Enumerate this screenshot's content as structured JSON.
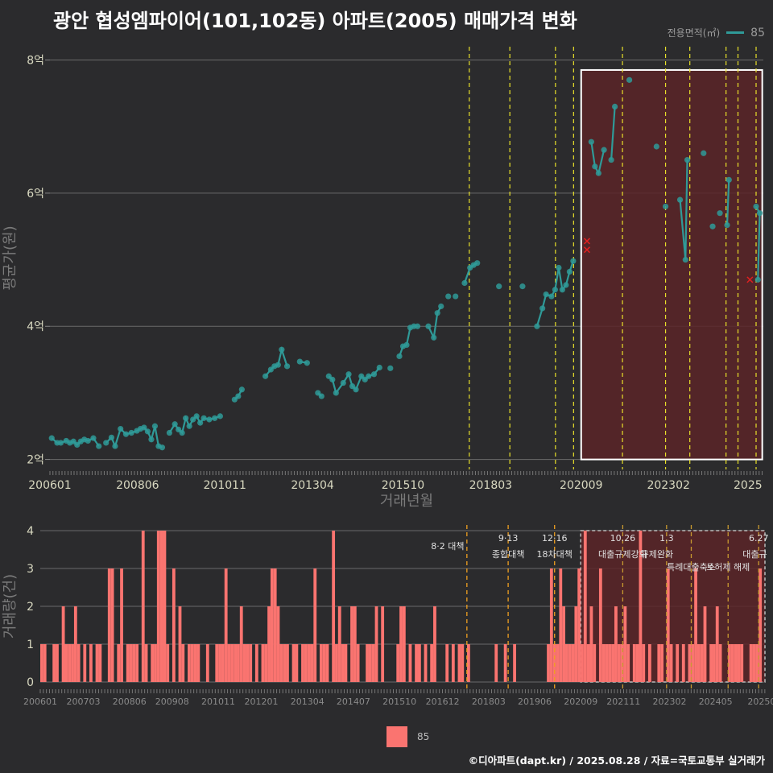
{
  "title": "광안 협성엠파이어(101,102동) 아파트(2005) 매매가격 변화",
  "legend_top": {
    "title": "전용면적(㎡)",
    "label": "85"
  },
  "legend_bottom": {
    "label": "85"
  },
  "footer": "©디아파트(dapt.kr) / 2025.08.28 / 자료=국토교통부 실거래가",
  "colors": {
    "background": "#2b2b2d",
    "price_line": "#2f9a98",
    "volume_bar": "#fa7470",
    "policy_line_yellow": "#e8e02a",
    "policy_line_orange": "#f0a020",
    "highlight_fill": "#5a2528",
    "cancelled_marker": "#e02020"
  },
  "chart_data": [
    {
      "type": "line",
      "title": "광안 협성엠파이어(101,102동) 아파트(2005) 매매가격 변화",
      "xlabel": "거래년월",
      "ylabel": "평균가(원)",
      "x_ticks": [
        "200601",
        "200806",
        "201011",
        "201304",
        "201510",
        "201803",
        "202009",
        "202302",
        "2025"
      ],
      "y_ticks": [
        "2억",
        "4억",
        "6억",
        "8억"
      ],
      "xlim": [
        2006.0,
        2025.7
      ],
      "ylim": [
        1.85,
        8.2
      ],
      "y_unit": "억",
      "grid": true,
      "legend": "top-right",
      "highlight_range": [
        2020.67,
        2025.67
      ],
      "policy_lines": [
        2017.58,
        2018.7,
        2019.96,
        2020.46,
        2021.81,
        2023.0,
        2023.67,
        2024.67,
        2025.0,
        2025.5
      ],
      "cancelled": [
        [
          2020.83,
          5.28
        ],
        [
          2020.83,
          5.15
        ],
        [
          2025.33,
          4.7
        ]
      ],
      "series": [
        {
          "name": "85",
          "points": [
            [
              2006.05,
              2.32
            ],
            [
              2006.2,
              2.25
            ],
            [
              2006.3,
              2.25
            ],
            [
              2006.45,
              2.28
            ],
            [
              2006.55,
              2.25
            ],
            [
              2006.65,
              2.27
            ],
            [
              2006.75,
              2.22
            ],
            [
              2006.85,
              2.27
            ],
            [
              2006.95,
              2.3
            ],
            [
              2007.05,
              2.28
            ],
            [
              2007.2,
              2.32
            ],
            [
              2007.35,
              2.2
            ],
            [
              2007.55,
              2.25
            ],
            [
              2007.7,
              2.33
            ],
            [
              2007.8,
              2.2
            ],
            [
              2007.95,
              2.46
            ],
            [
              2008.1,
              2.38
            ],
            [
              2008.25,
              2.4
            ],
            [
              2008.4,
              2.43
            ],
            [
              2008.5,
              2.46
            ],
            [
              2008.6,
              2.48
            ],
            [
              2008.7,
              2.42
            ],
            [
              2008.8,
              2.3
            ],
            [
              2008.9,
              2.5
            ],
            [
              2009.0,
              2.2
            ],
            [
              2009.1,
              2.18
            ],
            [
              2009.3,
              2.4
            ],
            [
              2009.45,
              2.53
            ],
            [
              2009.55,
              2.45
            ],
            [
              2009.65,
              2.4
            ],
            [
              2009.75,
              2.62
            ],
            [
              2009.85,
              2.5
            ],
            [
              2009.95,
              2.6
            ],
            [
              2010.05,
              2.65
            ],
            [
              2010.15,
              2.55
            ],
            [
              2010.25,
              2.62
            ],
            [
              2010.4,
              2.6
            ],
            [
              2010.55,
              2.62
            ],
            [
              2010.7,
              2.65
            ],
            [
              2011.1,
              2.9
            ],
            [
              2011.2,
              2.95
            ],
            [
              2011.3,
              3.05
            ],
            [
              2011.95,
              3.25
            ],
            [
              2012.1,
              3.35
            ],
            [
              2012.2,
              3.4
            ],
            [
              2012.3,
              3.42
            ],
            [
              2012.4,
              3.65
            ],
            [
              2012.55,
              3.4
            ],
            [
              2012.9,
              3.47
            ],
            [
              2013.1,
              3.45
            ],
            [
              2013.4,
              3.0
            ],
            [
              2013.5,
              2.95
            ],
            [
              2013.7,
              3.25
            ],
            [
              2013.8,
              3.2
            ],
            [
              2013.9,
              3.0
            ],
            [
              2014.1,
              3.15
            ],
            [
              2014.25,
              3.28
            ],
            [
              2014.35,
              3.1
            ],
            [
              2014.45,
              3.05
            ],
            [
              2014.6,
              3.25
            ],
            [
              2014.7,
              3.2
            ],
            [
              2014.8,
              3.25
            ],
            [
              2014.95,
              3.28
            ],
            [
              2015.1,
              3.38
            ],
            [
              2015.4,
              3.37
            ],
            [
              2015.65,
              3.55
            ],
            [
              2015.75,
              3.7
            ],
            [
              2015.85,
              3.72
            ],
            [
              2015.95,
              3.98
            ],
            [
              2016.05,
              4.0
            ],
            [
              2016.15,
              4.0
            ],
            [
              2016.45,
              4.0
            ],
            [
              2016.6,
              3.83
            ],
            [
              2016.7,
              4.2
            ],
            [
              2016.8,
              4.3
            ],
            [
              2017.0,
              4.45
            ],
            [
              2017.2,
              4.45
            ],
            [
              2017.45,
              4.65
            ],
            [
              2017.6,
              4.88
            ],
            [
              2017.7,
              4.92
            ],
            [
              2017.8,
              4.95
            ],
            [
              2018.4,
              4.6
            ],
            [
              2019.05,
              4.6
            ],
            [
              2019.45,
              4.0
            ],
            [
              2019.6,
              4.27
            ],
            [
              2019.7,
              4.48
            ],
            [
              2019.85,
              4.45
            ],
            [
              2019.95,
              4.55
            ],
            [
              2020.05,
              4.88
            ],
            [
              2020.15,
              4.55
            ],
            [
              2020.25,
              4.62
            ],
            [
              2020.35,
              4.82
            ],
            [
              2020.45,
              4.98
            ],
            [
              2020.95,
              6.77
            ],
            [
              2021.05,
              6.4
            ],
            [
              2021.15,
              6.3
            ],
            [
              2021.3,
              6.65
            ],
            [
              2021.5,
              6.5
            ],
            [
              2021.6,
              7.3
            ],
            [
              2022.0,
              7.7
            ],
            [
              2022.75,
              6.7
            ],
            [
              2023.0,
              5.8
            ],
            [
              2023.4,
              5.9
            ],
            [
              2023.55,
              5.0
            ],
            [
              2023.6,
              6.5
            ],
            [
              2024.05,
              6.6
            ],
            [
              2024.3,
              5.5
            ],
            [
              2024.5,
              5.7
            ],
            [
              2024.7,
              5.52
            ],
            [
              2024.75,
              6.2
            ],
            [
              2025.5,
              5.8
            ],
            [
              2025.6,
              5.7
            ],
            [
              2025.55,
              4.7
            ]
          ]
        }
      ]
    },
    {
      "type": "bar",
      "xlabel": "",
      "ylabel": "거래량(건)",
      "x_ticks": [
        "200601",
        "200703",
        "200806",
        "200908",
        "201011",
        "201201",
        "201304",
        "201407",
        "201510",
        "201612",
        "201803",
        "201906",
        "202009",
        "202111",
        "202302",
        "202405",
        "20250"
      ],
      "y_ticks": [
        "0",
        "1",
        "2",
        "3",
        "4"
      ],
      "ylim": [
        0,
        4
      ],
      "highlight_range": [
        2020.67,
        2025.67
      ],
      "policy_annotations": [
        {
          "x": 2017.58,
          "top": "",
          "text": "8·2 대책"
        },
        {
          "x": 2018.7,
          "top": "9·13",
          "text": "종합대책"
        },
        {
          "x": 2019.96,
          "top": "12·16",
          "text": "18차대책"
        },
        {
          "x": 2021.81,
          "top": "10.26",
          "text": "대출규제강화"
        },
        {
          "x": 2023.0,
          "top": "1.3",
          "text": "규제완화"
        },
        {
          "x": 2023.67,
          "top": "",
          "text": "특례대출축소"
        },
        {
          "x": 2024.67,
          "top": "",
          "text": "토허제 해제"
        },
        {
          "x": 2025.5,
          "top": "6.27",
          "text": "대출규"
        }
      ],
      "series": [
        {
          "name": "85",
          "seed_counts": "monthly transaction counts 0-4"
        }
      ]
    }
  ]
}
